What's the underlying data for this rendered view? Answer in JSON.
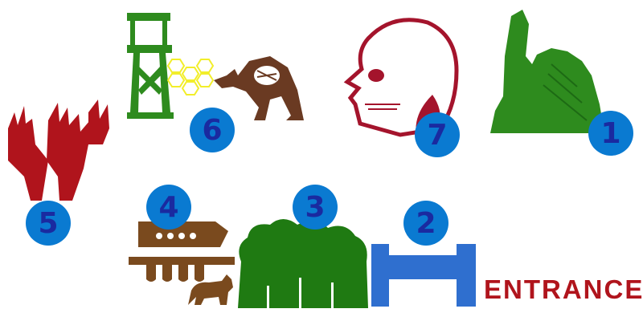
{
  "map": {
    "entrance_label": "ENTRANCE",
    "stops": [
      {
        "number": "1",
        "icon": "rock-figure-icon"
      },
      {
        "number": "2",
        "icon": "dock-icon"
      },
      {
        "number": "3",
        "icon": "forest-icon"
      },
      {
        "number": "4",
        "icon": "ark-icon"
      },
      {
        "number": "5",
        "icon": "elk-heads-icon"
      },
      {
        "number": "6",
        "icon": "watchtower-kangaroo-icon"
      },
      {
        "number": "7",
        "icon": "skull-icon"
      }
    ]
  },
  "colors": {
    "badge_fill": "#0a7ad1",
    "badge_text": "#1a2aa0",
    "red": "#b0141c",
    "green": "#2e8b1e",
    "forest_green": "#1f7a12",
    "brown": "#7a4a1e",
    "blue": "#2f6fcf",
    "yellow": "#f2ee2a"
  }
}
